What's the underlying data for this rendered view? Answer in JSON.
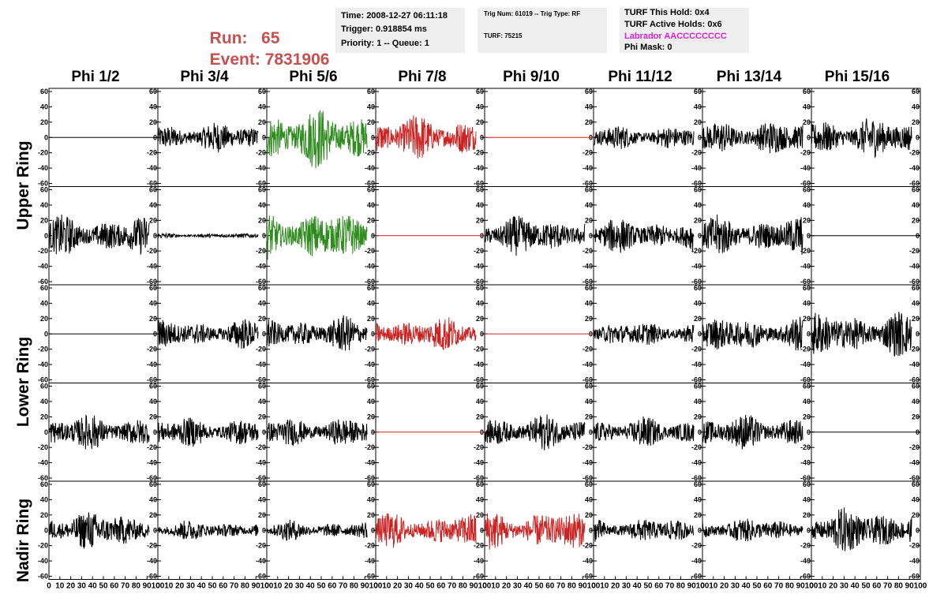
{
  "header": {
    "run_label": "Run:",
    "run_value": "65",
    "event_label": "Event:",
    "event_value": "7831906"
  },
  "info_box_1": {
    "time": "Time: 2008-12-27 06:11:18",
    "trigger": "Trigger: 0.918854 ms",
    "priority": "Priority: 1 -- Queue: 1"
  },
  "info_box_2": {
    "trig": "Trig Num: 61019 -- Trig Type: RF",
    "turf": "TURF: 75215"
  },
  "info_box_3": {
    "this_hold": "TURF This Hold: 0x4",
    "active_holds": "TURF Active Holds: 0x6",
    "labrador": "Labrador AACCCCCCCC",
    "phi_mask": "Phi Mask: 0"
  },
  "columns": [
    "Phi 1/2",
    "Phi 3/4",
    "Phi 5/6",
    "Phi 7/8",
    "Phi 9/10",
    "Phi 11/12",
    "Phi 13/14",
    "Phi 15/16"
  ],
  "ring_labels": [
    "Upper Ring",
    "Lower Ring",
    "Nadir Ring"
  ],
  "y_ticks": [
    "60",
    "40",
    "20",
    "0",
    "-20",
    "-40",
    "-60"
  ],
  "x_ticks": [
    "0",
    "10",
    "20",
    "30",
    "40",
    "50",
    "60",
    "70",
    "80",
    "90",
    "100"
  ],
  "colors": {
    "run_text": "#c85050",
    "labrador_text": "#e020e0",
    "info_bg": "#efefef",
    "trace_black": "#000000",
    "trace_green": "#2e8b1e",
    "trace_red": "#cc2222"
  },
  "chart_data": {
    "type": "line",
    "xlim": [
      0,
      100
    ],
    "ylim": [
      -60,
      60
    ],
    "grid": false,
    "panels": [
      {
        "row": 0,
        "col": 0,
        "color": "black",
        "amplitude": 0
      },
      {
        "row": 0,
        "col": 1,
        "color": "black",
        "amplitude": 12
      },
      {
        "row": 0,
        "col": 2,
        "color": "green",
        "amplitude": 24
      },
      {
        "row": 0,
        "col": 3,
        "color": "red",
        "amplitude": 18
      },
      {
        "row": 0,
        "col": 4,
        "color": "red",
        "amplitude": 0
      },
      {
        "row": 0,
        "col": 5,
        "color": "black",
        "amplitude": 10
      },
      {
        "row": 0,
        "col": 6,
        "color": "black",
        "amplitude": 14
      },
      {
        "row": 0,
        "col": 7,
        "color": "black",
        "amplitude": 16
      },
      {
        "row": 1,
        "col": 0,
        "color": "black",
        "amplitude": 16
      },
      {
        "row": 1,
        "col": 1,
        "color": "black",
        "amplitude": 2
      },
      {
        "row": 1,
        "col": 2,
        "color": "green",
        "amplitude": 20
      },
      {
        "row": 1,
        "col": 3,
        "color": "red",
        "amplitude": 0
      },
      {
        "row": 1,
        "col": 4,
        "color": "black",
        "amplitude": 16
      },
      {
        "row": 1,
        "col": 5,
        "color": "black",
        "amplitude": 14
      },
      {
        "row": 1,
        "col": 6,
        "color": "black",
        "amplitude": 16
      },
      {
        "row": 1,
        "col": 7,
        "color": "black",
        "amplitude": 0
      },
      {
        "row": 2,
        "col": 0,
        "color": "black",
        "amplitude": 0
      },
      {
        "row": 2,
        "col": 1,
        "color": "black",
        "amplitude": 12
      },
      {
        "row": 2,
        "col": 2,
        "color": "black",
        "amplitude": 14
      },
      {
        "row": 2,
        "col": 3,
        "color": "red",
        "amplitude": 14
      },
      {
        "row": 2,
        "col": 4,
        "color": "red",
        "amplitude": 0
      },
      {
        "row": 2,
        "col": 5,
        "color": "black",
        "amplitude": 10
      },
      {
        "row": 2,
        "col": 6,
        "color": "black",
        "amplitude": 14
      },
      {
        "row": 2,
        "col": 7,
        "color": "black",
        "amplitude": 18
      },
      {
        "row": 3,
        "col": 0,
        "color": "black",
        "amplitude": 14
      },
      {
        "row": 3,
        "col": 1,
        "color": "black",
        "amplitude": 12
      },
      {
        "row": 3,
        "col": 2,
        "color": "black",
        "amplitude": 12
      },
      {
        "row": 3,
        "col": 3,
        "color": "red",
        "amplitude": 0
      },
      {
        "row": 3,
        "col": 4,
        "color": "black",
        "amplitude": 14
      },
      {
        "row": 3,
        "col": 5,
        "color": "black",
        "amplitude": 12
      },
      {
        "row": 3,
        "col": 6,
        "color": "black",
        "amplitude": 14
      },
      {
        "row": 3,
        "col": 7,
        "color": "black",
        "amplitude": 0
      },
      {
        "row": 4,
        "col": 0,
        "color": "black",
        "amplitude": 16
      },
      {
        "row": 4,
        "col": 1,
        "color": "black",
        "amplitude": 8
      },
      {
        "row": 4,
        "col": 2,
        "color": "black",
        "amplitude": 8
      },
      {
        "row": 4,
        "col": 3,
        "color": "red",
        "amplitude": 14
      },
      {
        "row": 4,
        "col": 4,
        "color": "red",
        "amplitude": 16
      },
      {
        "row": 4,
        "col": 5,
        "color": "black",
        "amplitude": 10
      },
      {
        "row": 4,
        "col": 6,
        "color": "black",
        "amplitude": 10
      },
      {
        "row": 4,
        "col": 7,
        "color": "black",
        "amplitude": 18
      }
    ]
  }
}
